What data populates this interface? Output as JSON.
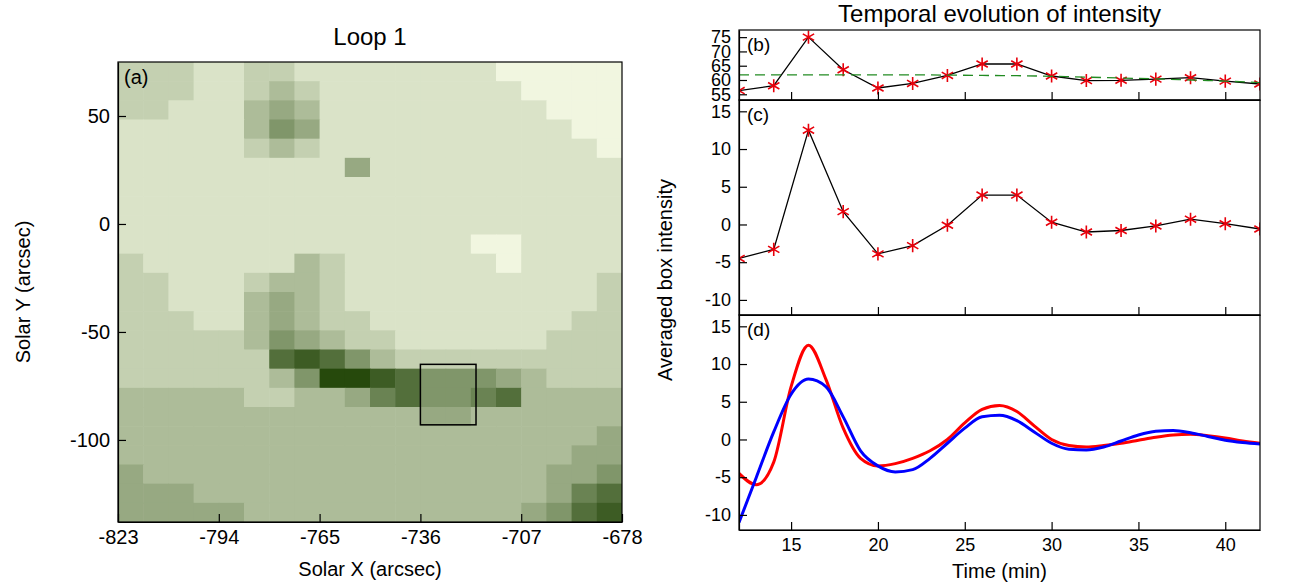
{
  "chart_data": [
    {
      "type": "heatmap",
      "label": "(a)",
      "title": "Loop 1",
      "xlabel": "Solar X (arcsec)",
      "ylabel": "Solar Y (arcsec)",
      "xlim": [
        -823,
        -678
      ],
      "ylim": [
        -138,
        75
      ],
      "xticks": [
        -823,
        -794,
        -765,
        -736,
        -707,
        -678
      ],
      "yticks": [
        -100,
        -50,
        0,
        50
      ],
      "color": "#26490c",
      "box": {
        "x": [
          -736,
          -720
        ],
        "y": [
          -93,
          -65
        ]
      },
      "cells": [
        [
          2,
          2,
          2,
          1,
          1,
          2,
          2,
          1,
          1,
          1,
          1,
          1,
          1,
          1,
          1,
          0,
          0,
          0,
          0,
          0
        ],
        [
          2,
          2,
          2,
          1,
          1,
          2,
          3,
          2,
          1,
          1,
          1,
          1,
          1,
          1,
          1,
          1,
          0,
          0,
          0,
          0
        ],
        [
          2,
          2,
          1,
          1,
          1,
          3,
          4,
          3,
          1,
          1,
          1,
          1,
          1,
          1,
          1,
          1,
          1,
          0,
          0,
          0
        ],
        [
          1,
          1,
          1,
          1,
          1,
          3,
          5,
          4,
          1,
          1,
          1,
          1,
          1,
          1,
          1,
          1,
          1,
          1,
          0,
          0
        ],
        [
          1,
          1,
          1,
          1,
          1,
          2,
          3,
          2,
          1,
          1,
          1,
          1,
          1,
          1,
          1,
          1,
          1,
          1,
          1,
          0
        ],
        [
          1,
          1,
          1,
          1,
          1,
          1,
          1,
          1,
          1,
          4,
          1,
          1,
          1,
          1,
          1,
          1,
          1,
          1,
          1,
          1
        ],
        [
          1,
          1,
          1,
          1,
          1,
          1,
          1,
          1,
          1,
          1,
          1,
          1,
          1,
          1,
          1,
          1,
          1,
          1,
          1,
          1
        ],
        [
          1,
          1,
          1,
          1,
          1,
          1,
          1,
          1,
          1,
          1,
          1,
          1,
          1,
          1,
          1,
          1,
          1,
          1,
          1,
          1
        ],
        [
          1,
          1,
          1,
          1,
          1,
          1,
          1,
          1,
          1,
          1,
          1,
          1,
          1,
          1,
          1,
          1,
          1,
          1,
          1,
          1
        ],
        [
          1,
          1,
          1,
          1,
          1,
          1,
          1,
          1,
          1,
          1,
          1,
          1,
          1,
          1,
          0,
          0,
          1,
          1,
          1,
          1
        ],
        [
          2,
          1,
          1,
          1,
          1,
          1,
          1,
          3,
          2,
          1,
          1,
          1,
          1,
          1,
          1,
          0,
          1,
          1,
          1,
          1
        ],
        [
          2,
          2,
          1,
          1,
          1,
          2,
          3,
          3,
          2,
          1,
          1,
          1,
          1,
          1,
          1,
          1,
          1,
          1,
          1,
          2
        ],
        [
          2,
          2,
          1,
          1,
          1,
          3,
          4,
          3,
          2,
          1,
          1,
          1,
          1,
          1,
          1,
          1,
          1,
          1,
          1,
          2
        ],
        [
          2,
          2,
          2,
          1,
          1,
          3,
          4,
          3,
          2,
          2,
          1,
          1,
          1,
          1,
          1,
          1,
          1,
          1,
          2,
          2
        ],
        [
          2,
          2,
          2,
          2,
          2,
          3,
          5,
          4,
          3,
          2,
          2,
          1,
          1,
          1,
          1,
          1,
          1,
          2,
          2,
          2
        ],
        [
          2,
          2,
          2,
          2,
          2,
          2,
          7,
          8,
          7,
          5,
          3,
          2,
          2,
          2,
          2,
          2,
          2,
          2,
          2,
          2
        ],
        [
          2,
          2,
          2,
          2,
          2,
          2,
          3,
          5,
          9,
          9,
          8,
          7,
          5,
          5,
          5,
          4,
          3,
          2,
          2,
          2
        ],
        [
          3,
          3,
          3,
          3,
          3,
          2,
          2,
          3,
          3,
          4,
          6,
          7,
          5,
          5,
          6,
          7,
          3,
          3,
          3,
          3
        ],
        [
          3,
          3,
          3,
          3,
          3,
          3,
          3,
          3,
          3,
          3,
          3,
          3,
          4,
          4,
          3,
          3,
          3,
          3,
          3,
          3
        ],
        [
          3,
          3,
          3,
          3,
          3,
          3,
          3,
          3,
          3,
          3,
          3,
          3,
          3,
          3,
          3,
          3,
          3,
          3,
          3,
          4
        ],
        [
          3,
          3,
          3,
          3,
          3,
          3,
          3,
          3,
          3,
          3,
          3,
          3,
          3,
          3,
          3,
          3,
          3,
          3,
          4,
          4
        ],
        [
          4,
          3,
          3,
          3,
          3,
          3,
          3,
          3,
          3,
          3,
          3,
          3,
          3,
          3,
          3,
          3,
          3,
          4,
          4,
          5
        ],
        [
          4,
          4,
          4,
          3,
          3,
          3,
          3,
          3,
          3,
          3,
          3,
          3,
          3,
          3,
          3,
          3,
          3,
          4,
          6,
          7
        ],
        [
          4,
          4,
          4,
          4,
          4,
          3,
          3,
          3,
          3,
          3,
          3,
          3,
          3,
          3,
          3,
          3,
          4,
          5,
          7,
          8
        ]
      ]
    },
    {
      "type": "line",
      "label": "(b)",
      "title": "Temporal evolution of intensity",
      "xlim": [
        12,
        42
      ],
      "ylim": [
        53,
        77.5
      ],
      "xticks": [
        15,
        20,
        25,
        30,
        35,
        40
      ],
      "yticks": [
        55,
        60,
        65,
        70,
        75
      ],
      "tick_labels": "y",
      "x": [
        12,
        14,
        16,
        18,
        20,
        22,
        24,
        26,
        28,
        30,
        32,
        34,
        36,
        38,
        40,
        42
      ],
      "series": [
        {
          "color": "#000000",
          "marker": "asterisk",
          "line_style": "solid",
          "values": [
            56.3,
            58.0,
            75.0,
            63.6,
            57.2,
            58.8,
            61.6,
            65.6,
            65.6,
            61.4,
            59.8,
            59.9,
            60.3,
            60.8,
            59.6,
            58.6
          ]
        },
        {
          "color": "#228b22",
          "line_style": "dashed",
          "values": [
            61.8,
            61.8,
            61.8,
            61.8,
            61.8,
            61.8,
            61.7,
            61.6,
            61.5,
            61.3,
            61.0,
            60.7,
            60.4,
            60.0,
            59.6,
            59.1
          ]
        }
      ]
    },
    {
      "type": "line",
      "label": "(c)",
      "ylabel": "Averaged box intensity",
      "xlim": [
        12,
        42
      ],
      "ylim": [
        -12,
        16.5
      ],
      "xticks": [
        15,
        20,
        25,
        30,
        35,
        40
      ],
      "yticks": [
        -10,
        -5,
        0,
        5,
        10,
        15
      ],
      "tick_labels": "y",
      "x": [
        12,
        14,
        16,
        18,
        20,
        22,
        24,
        26,
        28,
        30,
        32,
        34,
        36,
        38,
        40,
        42
      ],
      "series": [
        {
          "color": "#000000",
          "marker": "asterisk",
          "line_style": "solid",
          "values": [
            -4.5,
            -3.3,
            12.5,
            1.7,
            -3.9,
            -2.8,
            -0.1,
            3.9,
            3.9,
            0.3,
            -1.0,
            -0.8,
            -0.2,
            0.7,
            0.1,
            -0.6
          ]
        }
      ]
    },
    {
      "type": "line",
      "label": "(d)",
      "xlabel": "Time (min)",
      "xlim": [
        12,
        42
      ],
      "ylim": [
        -12,
        16.5
      ],
      "xticks": [
        15,
        20,
        25,
        30,
        35,
        40
      ],
      "yticks": [
        -10,
        -5,
        0,
        5,
        10,
        15
      ],
      "x": [
        12,
        13,
        14,
        15,
        16,
        17,
        18,
        19,
        20,
        21,
        22,
        23,
        24,
        25,
        26,
        27,
        28,
        29,
        30,
        31,
        32,
        33,
        34,
        35,
        36,
        37,
        38,
        39,
        40,
        41,
        42
      ],
      "series": [
        {
          "color": "#ff0000",
          "line_style": "solid",
          "values": [
            -4.5,
            -6,
            -3,
            7,
            12.5,
            8,
            1.5,
            -2.5,
            -3.5,
            -3.2,
            -2.5,
            -1.5,
            0,
            2.2,
            4,
            4.5,
            3.7,
            1.8,
            0,
            -0.8,
            -1,
            -0.8,
            -0.5,
            -0.1,
            0.3,
            0.6,
            0.7,
            0.5,
            0.2,
            -0.2,
            -0.5
          ]
        },
        {
          "color": "#0000ff",
          "line_style": "solid",
          "values": [
            -11,
            -5,
            1,
            6,
            8,
            7,
            3,
            -1.5,
            -3.5,
            -4.3,
            -4,
            -2.5,
            -0.5,
            1.5,
            3,
            3.2,
            2.5,
            1,
            -0.5,
            -1.3,
            -1.4,
            -1,
            -0.2,
            0.6,
            1.1,
            1.2,
            0.9,
            0.4,
            -0.1,
            -0.4,
            -0.6
          ]
        }
      ]
    }
  ]
}
